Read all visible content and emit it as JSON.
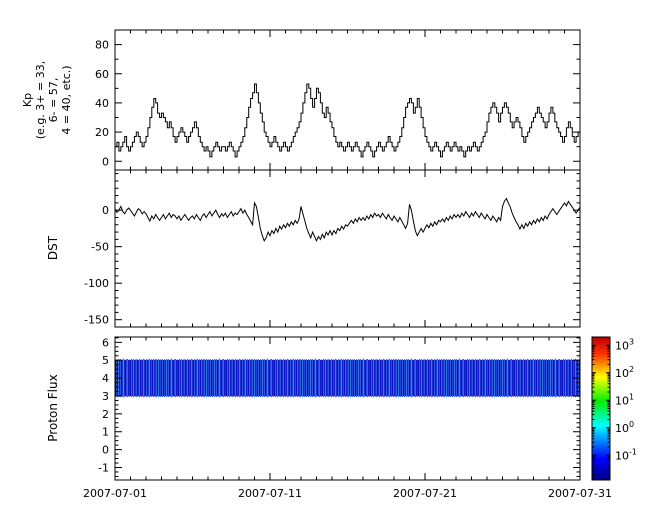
{
  "figure": {
    "background": "#ffffff",
    "axis_color": "#000000",
    "line_color": "#000000"
  },
  "xaxis": {
    "tick_labels": [
      "2007-07-01",
      "2007-07-11",
      "2007-07-21",
      "2007-07-31"
    ],
    "span_days": 30,
    "minor_tick_days": 1,
    "major_tick_days": 10
  },
  "chart_data": [
    {
      "type": "line",
      "name": "kp-index",
      "ylabel_lines": [
        "Kp",
        "(e.g. 3+ = 33,",
        "6- = 57,",
        "4 = 40, etc.)"
      ],
      "ylim": [
        -6,
        90
      ],
      "yticks": [
        0,
        20,
        40,
        60,
        80
      ],
      "ytick_minor_step": 10,
      "sample_hours": 3,
      "step": true,
      "values": [
        10,
        13,
        7,
        10,
        13,
        17,
        10,
        7,
        10,
        13,
        17,
        20,
        17,
        13,
        10,
        13,
        17,
        23,
        30,
        37,
        43,
        40,
        33,
        30,
        33,
        30,
        27,
        23,
        27,
        23,
        17,
        13,
        17,
        20,
        23,
        20,
        17,
        13,
        17,
        20,
        23,
        27,
        23,
        17,
        13,
        10,
        7,
        10,
        7,
        3,
        7,
        10,
        13,
        10,
        7,
        10,
        10,
        7,
        10,
        13,
        10,
        7,
        3,
        7,
        10,
        13,
        17,
        23,
        30,
        37,
        43,
        47,
        53,
        47,
        40,
        33,
        27,
        20,
        17,
        13,
        10,
        13,
        17,
        13,
        10,
        7,
        10,
        13,
        10,
        7,
        10,
        13,
        17,
        20,
        23,
        27,
        33,
        40,
        47,
        53,
        50,
        43,
        37,
        43,
        50,
        47,
        40,
        33,
        30,
        37,
        33,
        27,
        23,
        17,
        13,
        10,
        13,
        10,
        7,
        10,
        13,
        10,
        7,
        10,
        13,
        10,
        7,
        3,
        7,
        10,
        13,
        10,
        7,
        3,
        7,
        10,
        13,
        10,
        7,
        10,
        13,
        17,
        13,
        10,
        7,
        10,
        13,
        17,
        23,
        30,
        37,
        40,
        43,
        40,
        33,
        37,
        43,
        37,
        30,
        23,
        17,
        13,
        10,
        7,
        10,
        13,
        10,
        7,
        3,
        7,
        10,
        13,
        10,
        7,
        10,
        13,
        10,
        7,
        10,
        7,
        3,
        7,
        10,
        7,
        10,
        13,
        10,
        7,
        10,
        13,
        17,
        20,
        27,
        33,
        37,
        40,
        37,
        33,
        27,
        33,
        37,
        40,
        37,
        33,
        27,
        23,
        27,
        30,
        27,
        23,
        17,
        13,
        17,
        20,
        23,
        27,
        30,
        33,
        37,
        33,
        30,
        27,
        23,
        27,
        33,
        37,
        33,
        27,
        23,
        20,
        17,
        13,
        17,
        23,
        27,
        23,
        17,
        13,
        17,
        20,
        23,
        17,
        13,
        10,
        13,
        17,
        20,
        23
      ]
    },
    {
      "type": "line",
      "name": "dst-index",
      "ylabel": "DST",
      "ylim": [
        -160,
        55
      ],
      "yticks": [
        0,
        -50,
        -100,
        -150
      ],
      "ytick_minor_step": 10,
      "sample_hours": 3,
      "step": false,
      "values": [
        2,
        -3,
        0,
        5,
        -2,
        -5,
        0,
        3,
        0,
        -4,
        -8,
        -3,
        2,
        0,
        -5,
        -2,
        -5,
        -10,
        -15,
        -8,
        -12,
        -6,
        -10,
        -14,
        -10,
        -6,
        -12,
        -8,
        -4,
        -10,
        -6,
        -8,
        -12,
        -8,
        -14,
        -10,
        -6,
        -10,
        -14,
        -10,
        -8,
        -12,
        -6,
        -10,
        -14,
        -8,
        -5,
        -10,
        -6,
        -2,
        -8,
        -4,
        0,
        -6,
        -10,
        -5,
        -8,
        -4,
        -10,
        -6,
        -2,
        -8,
        -4,
        -6,
        -2,
        2,
        -4,
        0,
        -6,
        -10,
        -15,
        -20,
        10,
        5,
        -10,
        -25,
        -35,
        -42,
        -38,
        -30,
        -35,
        -28,
        -32,
        -25,
        -30,
        -22,
        -26,
        -20,
        -24,
        -18,
        -22,
        -16,
        -20,
        -14,
        -18,
        -12,
        5,
        -5,
        -15,
        -25,
        -32,
        -38,
        -30,
        -36,
        -42,
        -36,
        -40,
        -33,
        -38,
        -30,
        -34,
        -28,
        -34,
        -28,
        -32,
        -25,
        -28,
        -22,
        -26,
        -20,
        -22,
        -18,
        -14,
        -18,
        -12,
        -16,
        -10,
        -14,
        -10,
        -14,
        -8,
        -12,
        -6,
        -10,
        -4,
        -8,
        -6,
        -10,
        -4,
        -8,
        -12,
        -6,
        -10,
        -14,
        -8,
        -12,
        -16,
        -10,
        -15,
        -20,
        -25,
        -18,
        8,
        0,
        -15,
        -28,
        -35,
        -30,
        -25,
        -30,
        -25,
        -20,
        -24,
        -18,
        -22,
        -16,
        -20,
        -14,
        -16,
        -12,
        -16,
        -10,
        -14,
        -8,
        -12,
        -6,
        -10,
        -6,
        -10,
        -4,
        -8,
        -2,
        -6,
        -10,
        -4,
        -8,
        -2,
        -6,
        -10,
        -4,
        -8,
        -12,
        -6,
        -10,
        -14,
        -8,
        -12,
        -16,
        -10,
        -14,
        5,
        12,
        16,
        10,
        4,
        -4,
        -10,
        -16,
        -20,
        -26,
        -20,
        -25,
        -18,
        -22,
        -16,
        -20,
        -14,
        -18,
        -12,
        -16,
        -10,
        -14,
        -8,
        -12,
        -6,
        -2,
        2,
        -2,
        -6,
        -2,
        2,
        6,
        10,
        6,
        12,
        8,
        4,
        0,
        -4,
        0,
        4,
        8,
        4,
        0,
        -4,
        0,
        4,
        8
      ]
    },
    {
      "type": "heatmap",
      "name": "proton-flux-spectrogram",
      "ylabel": "Proton Flux",
      "ylim": [
        -1.7,
        6.3
      ],
      "yticks": [
        6,
        5,
        4,
        3,
        2,
        1,
        0,
        -1
      ],
      "ytick_minor_step": 0.25,
      "band": {
        "y_range": [
          3,
          5
        ],
        "color_low": "#0000bb",
        "color_high": "#55aaff",
        "streaks": [
          0.1,
          0.4,
          0.15,
          0.7,
          0.2,
          0.5,
          0.1,
          0.3,
          0.8,
          0.25,
          0.1,
          0.45,
          0.6,
          0.15,
          0.3,
          0.1,
          0.55,
          0.2,
          0.75,
          0.1,
          0.35,
          0.5,
          0.15,
          0.25,
          0.65,
          0.1,
          0.4,
          0.2,
          0.7,
          0.3,
          0.1,
          0.5,
          0.2,
          0.35,
          0.8,
          0.15,
          0.45,
          0.1,
          0.6,
          0.25,
          0.3,
          0.55,
          0.1,
          0.7,
          0.2,
          0.4,
          0.15,
          0.5
        ]
      },
      "colorbar": {
        "log_range": [
          -1.9,
          3.3
        ],
        "tick_exponents": [
          3,
          2,
          1,
          0,
          -1
        ],
        "tick_label_base": "10",
        "colormap": [
          {
            "pos": 0,
            "color": "#000080"
          },
          {
            "pos": 0.15,
            "color": "#0000ff"
          },
          {
            "pos": 0.38,
            "color": "#00ffff"
          },
          {
            "pos": 0.55,
            "color": "#00ee00"
          },
          {
            "pos": 0.72,
            "color": "#ffff00"
          },
          {
            "pos": 0.88,
            "color": "#ff3300"
          },
          {
            "pos": 1,
            "color": "#bb0000"
          }
        ]
      }
    }
  ]
}
